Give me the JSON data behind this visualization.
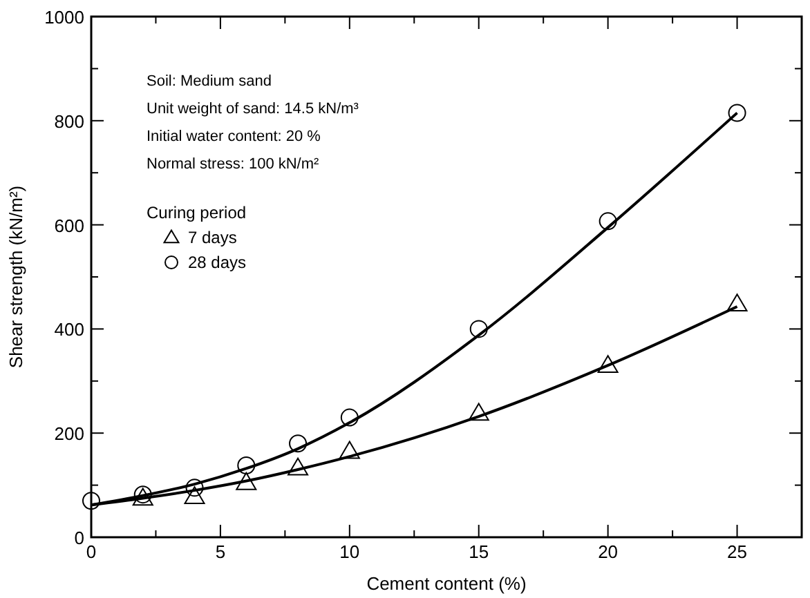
{
  "chart_data": {
    "type": "scatter",
    "xlabel": "Cement content (%)",
    "ylabel": "Shear strength (kN/m²)",
    "legend_title": "Curing period",
    "legend": "top left",
    "grid": false,
    "xlim": [
      0,
      27.5
    ],
    "ylim": [
      0,
      1000
    ],
    "xticks": [
      0,
      {
        "value": 2.5,
        "label": null
      },
      5,
      {
        "value": 7.5,
        "label": null
      },
      10,
      {
        "value": 12.5,
        "label": null
      },
      15,
      {
        "value": 17.5,
        "label": null
      },
      20,
      {
        "value": 22.5,
        "label": null
      },
      25
    ],
    "yticks": [
      0,
      {
        "value": 100,
        "label": null
      },
      200,
      {
        "value": 300,
        "label": null
      },
      400,
      {
        "value": 500,
        "label": null
      },
      600,
      {
        "value": 700,
        "label": null
      },
      800,
      {
        "value": 900,
        "label": null
      },
      1000
    ],
    "annotations": [
      "Soil: Medium sand",
      "Unit weight of sand: 14.5 kN/m³",
      "Initial water content: 20 %",
      "Normal stress: 100 kN/m²"
    ],
    "series": [
      {
        "name": "7 days",
        "marker": "triangle",
        "color": "#000000",
        "x": [
          2,
          4,
          6,
          8,
          10,
          15,
          20,
          25
        ],
        "values": [
          75,
          78,
          105,
          133,
          165,
          238,
          330,
          448
        ]
      },
      {
        "name": "28 days",
        "marker": "circle",
        "color": "#000000",
        "x": [
          0,
          2,
          4,
          6,
          8,
          10,
          15,
          20,
          25
        ],
        "values": [
          70,
          82,
          95,
          138,
          180,
          230,
          400,
          607,
          815
        ]
      },
      {
        "type": "line",
        "marker": "none",
        "color": "#000000",
        "x": [
          0,
          2,
          4,
          6,
          8,
          10,
          15,
          20,
          25
        ],
        "values": [
          62,
          75,
          90,
          108,
          130,
          155,
          232,
          330,
          443
        ]
      },
      {
        "type": "line",
        "marker": "none",
        "color": "#000000",
        "x": [
          0,
          2,
          4,
          6,
          8,
          10,
          15,
          20,
          25
        ],
        "values": [
          62,
          80,
          102,
          132,
          170,
          220,
          388,
          595,
          815
        ]
      }
    ]
  }
}
